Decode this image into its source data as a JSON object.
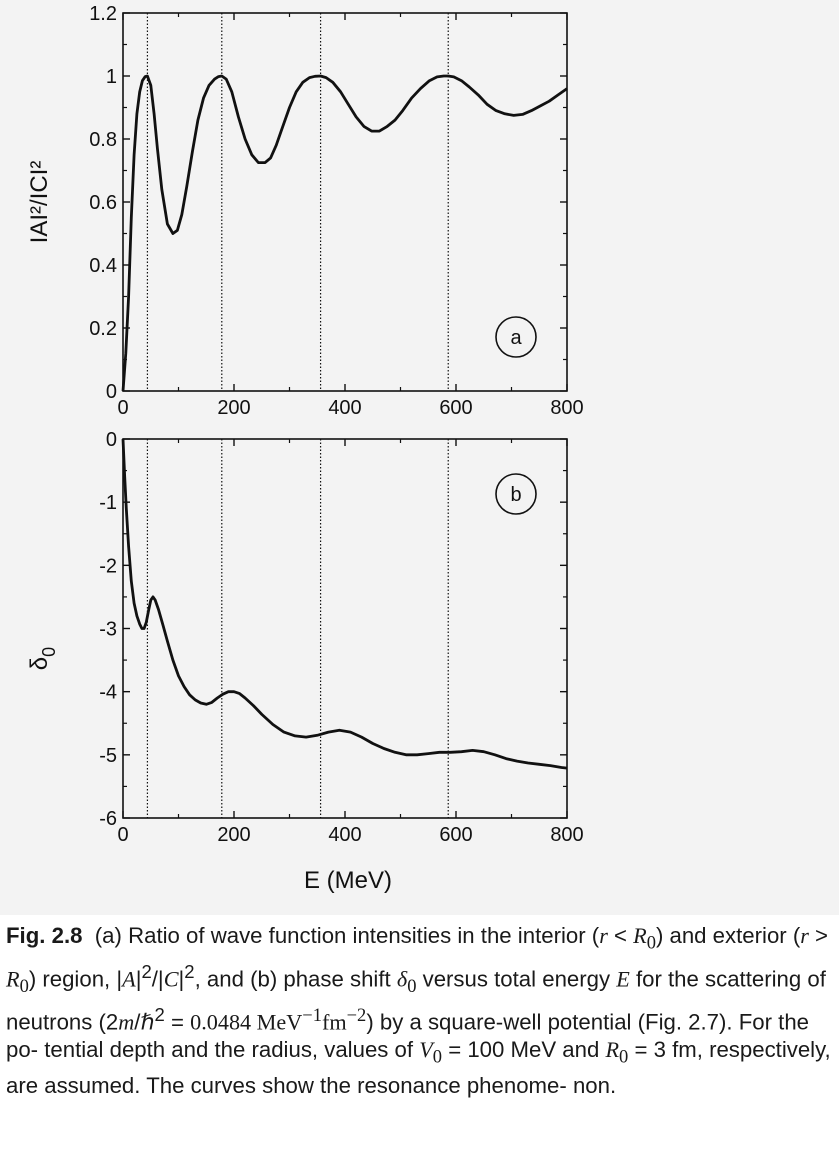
{
  "chart_data": [
    {
      "type": "line",
      "panel_label": "a",
      "ylabel": "IAI²/ICI²",
      "xlim": [
        0,
        800
      ],
      "ylim": [
        0,
        1.2
      ],
      "xticks": [
        "0",
        "200",
        "400",
        "600",
        "800"
      ],
      "yticks": [
        "0",
        "0.2",
        "0.4",
        "0.6",
        "0.8",
        "1",
        "1.2"
      ],
      "resonance_lines_x": [
        44,
        178,
        356,
        586
      ],
      "series": [
        {
          "x": [
            0,
            5,
            10,
            15,
            20,
            25,
            30,
            35,
            40,
            44,
            50,
            56,
            62,
            70,
            80,
            90,
            98,
            106,
            115,
            125,
            135,
            145,
            155,
            165,
            172,
            178,
            186,
            196,
            208,
            220,
            232,
            244,
            256,
            266,
            276,
            288,
            300,
            312,
            324,
            336,
            346,
            356,
            366,
            378,
            392,
            406,
            420,
            434,
            448,
            462,
            476,
            490,
            504,
            520,
            536,
            552,
            566,
            578,
            586,
            596,
            610,
            624,
            640,
            656,
            672,
            688,
            704,
            720,
            736,
            752,
            768,
            784,
            800
          ],
          "values": [
            0.0,
            0.12,
            0.3,
            0.55,
            0.75,
            0.88,
            0.95,
            0.985,
            0.998,
            1.0,
            0.97,
            0.88,
            0.77,
            0.64,
            0.53,
            0.5,
            0.51,
            0.56,
            0.65,
            0.76,
            0.86,
            0.93,
            0.97,
            0.99,
            0.998,
            1.0,
            0.99,
            0.95,
            0.87,
            0.8,
            0.75,
            0.725,
            0.725,
            0.74,
            0.78,
            0.84,
            0.9,
            0.95,
            0.98,
            0.995,
            0.999,
            1.0,
            0.995,
            0.98,
            0.95,
            0.91,
            0.87,
            0.84,
            0.825,
            0.825,
            0.84,
            0.86,
            0.89,
            0.93,
            0.96,
            0.985,
            0.997,
            1.0,
            1.0,
            0.997,
            0.985,
            0.965,
            0.94,
            0.91,
            0.89,
            0.88,
            0.875,
            0.878,
            0.89,
            0.905,
            0.92,
            0.94,
            0.96
          ]
        }
      ]
    },
    {
      "type": "line",
      "panel_label": "b",
      "ylabel": "δ0",
      "xlabel": "E  (MeV)",
      "xlim": [
        0,
        800
      ],
      "ylim": [
        -6,
        0
      ],
      "xticks": [
        "0",
        "200",
        "400",
        "600",
        "800"
      ],
      "yticks": [
        "0",
        "-1",
        "-2",
        "-3",
        "-4",
        "-5",
        "-6"
      ],
      "resonance_lines_x": [
        44,
        178,
        356,
        586
      ],
      "series": [
        {
          "x": [
            0,
            3,
            6,
            10,
            15,
            20,
            25,
            30,
            34,
            38,
            42,
            46,
            50,
            54,
            58,
            64,
            72,
            80,
            90,
            100,
            110,
            120,
            130,
            140,
            150,
            160,
            170,
            180,
            190,
            200,
            210,
            220,
            235,
            250,
            270,
            290,
            310,
            330,
            350,
            370,
            390,
            410,
            430,
            450,
            470,
            490,
            510,
            530,
            550,
            570,
            590,
            610,
            630,
            650,
            670,
            690,
            710,
            730,
            750,
            770,
            790,
            800
          ],
          "values": [
            0.0,
            -0.6,
            -1.1,
            -1.7,
            -2.25,
            -2.6,
            -2.8,
            -2.93,
            -3.0,
            -3.0,
            -2.9,
            -2.72,
            -2.55,
            -2.5,
            -2.55,
            -2.7,
            -2.95,
            -3.2,
            -3.5,
            -3.75,
            -3.92,
            -4.05,
            -4.13,
            -4.18,
            -4.2,
            -4.17,
            -4.1,
            -4.04,
            -4.0,
            -4.0,
            -4.03,
            -4.1,
            -4.22,
            -4.36,
            -4.52,
            -4.64,
            -4.7,
            -4.72,
            -4.69,
            -4.64,
            -4.61,
            -4.64,
            -4.72,
            -4.82,
            -4.9,
            -4.96,
            -5.0,
            -5.0,
            -4.98,
            -4.96,
            -4.96,
            -4.95,
            -4.93,
            -4.95,
            -5.0,
            -5.06,
            -5.1,
            -5.13,
            -5.15,
            -5.17,
            -5.2,
            -5.21
          ]
        }
      ]
    }
  ],
  "caption": {
    "fig_label": "Fig. 2.8",
    "lines": [
      "(a) Ratio of wave function intensities in the interior (",
      "and exterior (",
      "versus total energy ",
      "0.0484 MeV",
      "tential depth and the radius, values of ",
      "respectively, are assumed. The curves show the resonance phenome-",
      "non."
    ]
  }
}
